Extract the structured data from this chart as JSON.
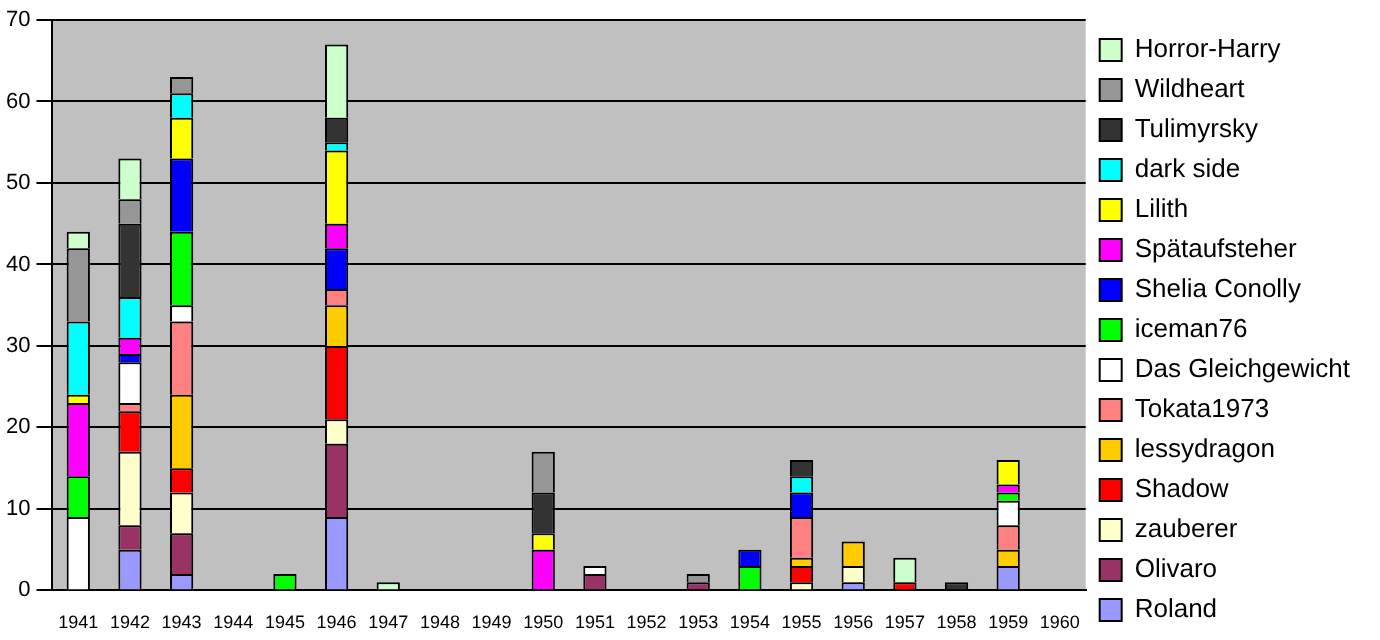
{
  "chart_data": {
    "type": "bar",
    "stacked": true,
    "categories": [
      "1941",
      "1942",
      "1943",
      "1944",
      "1945",
      "1946",
      "1947",
      "1948",
      "1949",
      "1950",
      "1951",
      "1952",
      "1953",
      "1954",
      "1955",
      "1956",
      "1957",
      "1958",
      "1959",
      "1960"
    ],
    "ylim": [
      0,
      70
    ],
    "yticks": [
      0,
      10,
      20,
      30,
      40,
      50,
      60,
      70
    ],
    "grid": "y",
    "legend": "right",
    "series": [
      {
        "name": "Roland",
        "color": "#9999ff",
        "values": [
          null,
          5,
          2,
          null,
          null,
          9,
          null,
          null,
          null,
          null,
          null,
          null,
          null,
          null,
          null,
          1,
          null,
          null,
          3,
          null
        ]
      },
      {
        "name": "Olivaro",
        "color": "#993366",
        "values": [
          null,
          3,
          5,
          null,
          null,
          9,
          null,
          null,
          null,
          null,
          2,
          null,
          1,
          null,
          null,
          null,
          null,
          null,
          null,
          null
        ]
      },
      {
        "name": "zauberer",
        "color": "#ffffcc",
        "values": [
          null,
          9,
          5,
          null,
          null,
          3,
          null,
          null,
          null,
          null,
          null,
          null,
          null,
          null,
          1,
          2,
          null,
          null,
          null,
          null
        ]
      },
      {
        "name": "Shadow",
        "color": "#ff0000",
        "values": [
          null,
          5,
          3,
          null,
          null,
          9,
          null,
          null,
          null,
          null,
          null,
          null,
          null,
          null,
          2,
          null,
          1,
          null,
          null,
          null
        ]
      },
      {
        "name": "lessydragon",
        "color": "#ffcc00",
        "values": [
          null,
          null,
          9,
          null,
          null,
          5,
          null,
          null,
          null,
          null,
          null,
          null,
          null,
          null,
          1,
          3,
          null,
          null,
          2,
          null
        ]
      },
      {
        "name": "Tokata1973",
        "color": "#ff8080",
        "values": [
          null,
          1,
          9,
          null,
          null,
          2,
          null,
          null,
          null,
          null,
          null,
          null,
          null,
          null,
          5,
          null,
          null,
          null,
          3,
          null
        ]
      },
      {
        "name": "Das Gleichgewicht",
        "color": "#ffffff",
        "values": [
          9,
          5,
          2,
          null,
          null,
          null,
          null,
          null,
          null,
          null,
          1,
          null,
          null,
          null,
          null,
          null,
          null,
          null,
          3,
          null
        ]
      },
      {
        "name": "iceman76",
        "color": "#00ff00",
        "values": [
          5,
          null,
          9,
          null,
          2,
          null,
          null,
          null,
          null,
          null,
          null,
          null,
          null,
          3,
          null,
          null,
          null,
          null,
          1,
          null
        ]
      },
      {
        "name": "Shelia Conolly",
        "color": "#0000ff",
        "values": [
          null,
          1,
          9,
          null,
          null,
          5,
          null,
          null,
          null,
          null,
          null,
          null,
          null,
          2,
          3,
          null,
          null,
          null,
          null,
          null
        ]
      },
      {
        "name": "Spätaufsteher",
        "color": "#ff00ff",
        "values": [
          9,
          2,
          null,
          null,
          null,
          3,
          null,
          null,
          null,
          5,
          null,
          null,
          null,
          null,
          null,
          null,
          null,
          null,
          1,
          null
        ]
      },
      {
        "name": "Lilith",
        "color": "#ffff00",
        "values": [
          1,
          null,
          5,
          null,
          null,
          9,
          null,
          null,
          null,
          2,
          null,
          null,
          null,
          null,
          null,
          null,
          null,
          null,
          3,
          null
        ]
      },
      {
        "name": "dark side",
        "color": "#00ffff",
        "values": [
          9,
          5,
          3,
          null,
          null,
          1,
          null,
          null,
          null,
          null,
          null,
          null,
          null,
          null,
          2,
          null,
          null,
          null,
          null,
          null
        ]
      },
      {
        "name": "Tulimyrsky",
        "color": "#333333",
        "values": [
          null,
          9,
          null,
          null,
          null,
          3,
          null,
          null,
          null,
          5,
          null,
          null,
          null,
          null,
          2,
          null,
          null,
          1,
          null,
          null
        ]
      },
      {
        "name": "Wildheart",
        "color": "#969696",
        "values": [
          9,
          3,
          2,
          null,
          null,
          null,
          null,
          null,
          null,
          5,
          null,
          null,
          1,
          null,
          null,
          null,
          null,
          null,
          null,
          null
        ]
      },
      {
        "name": "Horror-Harry",
        "color": "#ccffcc",
        "values": [
          2,
          5,
          null,
          null,
          null,
          9,
          1,
          null,
          null,
          null,
          null,
          null,
          null,
          null,
          null,
          null,
          3,
          null,
          null,
          null
        ]
      }
    ]
  }
}
